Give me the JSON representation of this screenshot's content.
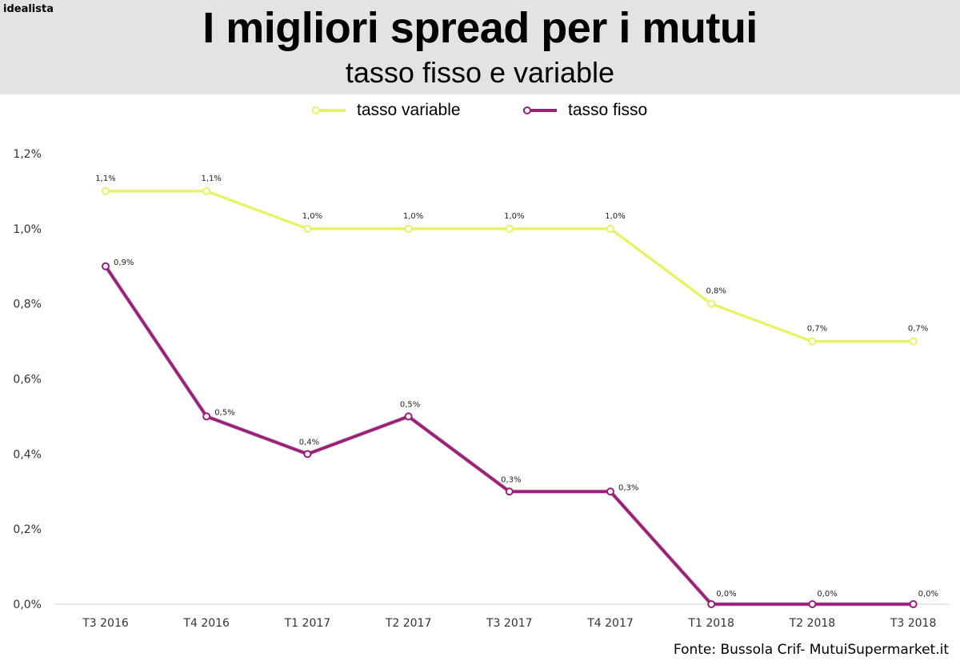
{
  "brand": "idealista",
  "source": "Fonte: Bussola Crif- MutuiSupermarket.it",
  "colors": {
    "variabile": "#e6f26a",
    "fisso": "#9b1f78",
    "header_bg": "#e3e3e3",
    "axis": "#cccccc"
  },
  "chart_data": {
    "type": "line",
    "title": "I migliori spread per i mutui",
    "subtitle": "tasso fisso e variable",
    "categories": [
      "T3 2016",
      "T4 2016",
      "T1 2017",
      "T2 2017",
      "T3 2017",
      "T4 2017",
      "T1 2018",
      "T2 2018",
      "T3 2018"
    ],
    "yticks": [
      "0,0%",
      "0,2%",
      "0,4%",
      "0,6%",
      "0,8%",
      "1,0%",
      "1,2%"
    ],
    "ylim": [
      0,
      1.2
    ],
    "legend_position": "top-center",
    "series": [
      {
        "name": "tasso variable",
        "color": "#e6f26a",
        "values": [
          1.1,
          1.1,
          1.0,
          1.0,
          1.0,
          1.0,
          0.8,
          0.7,
          0.7
        ],
        "labels": [
          "1,1%",
          "1,1%",
          "1,0%",
          "1,0%",
          "1,0%",
          "1,0%",
          "0,8%",
          "0,7%",
          "0,7%"
        ]
      },
      {
        "name": "tasso fisso",
        "color": "#9b1f78",
        "values": [
          0.9,
          0.5,
          0.4,
          0.5,
          0.3,
          0.3,
          0.0,
          0.0,
          0.0
        ],
        "labels": [
          "0,9%",
          "0,5%",
          "0,4%",
          "0,5%",
          "0,3%",
          "0,3%",
          "0,0%",
          "0,0%",
          "0,0%"
        ]
      }
    ]
  }
}
